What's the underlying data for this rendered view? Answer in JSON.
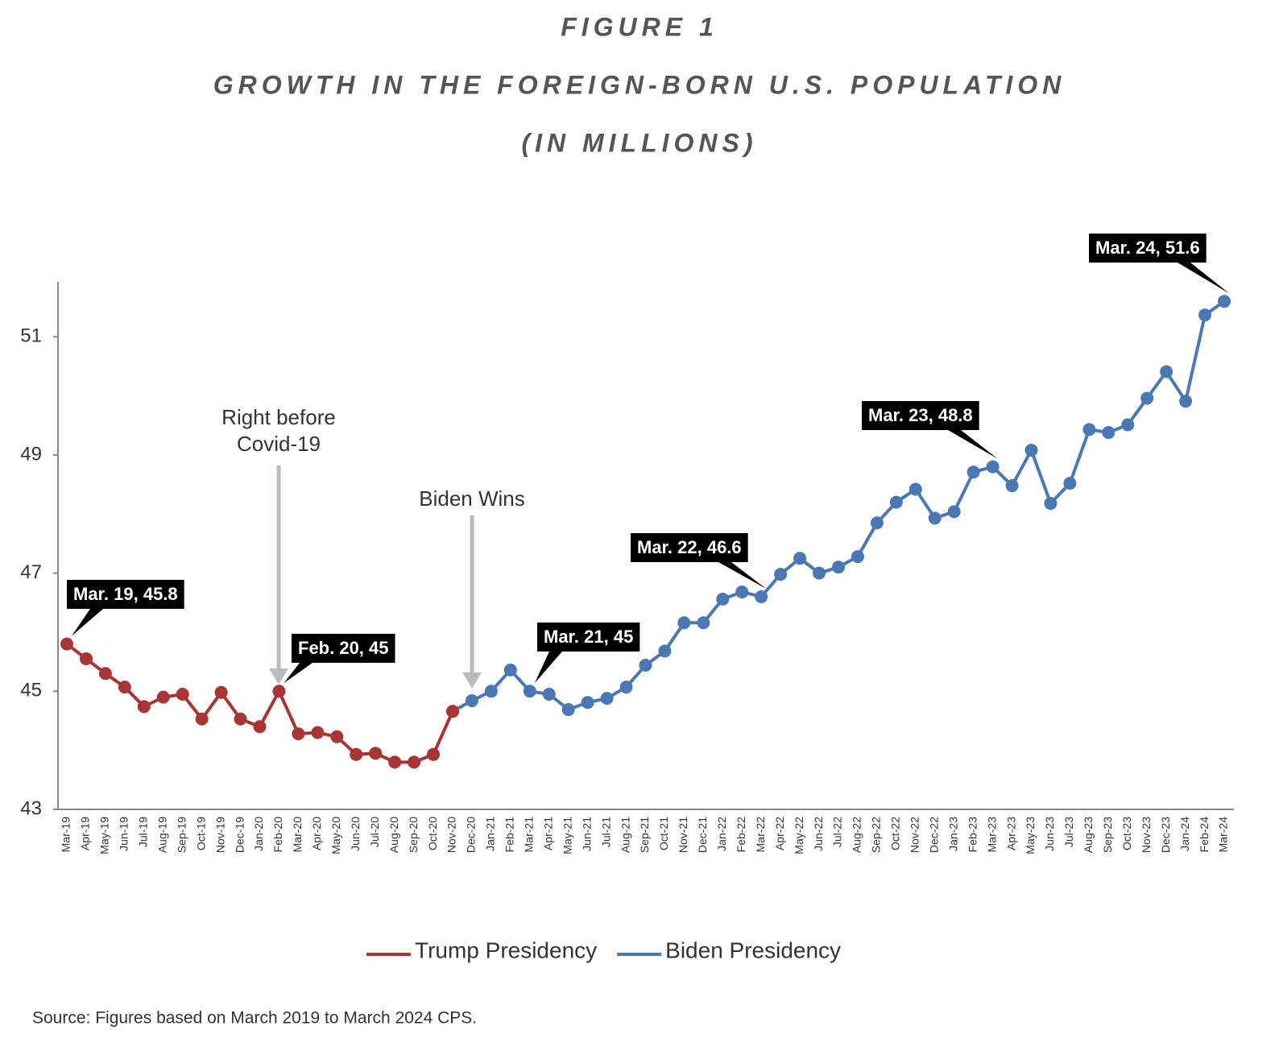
{
  "chart_data": {
    "type": "line",
    "title": "FIGURE 1",
    "subtitle": [
      "GROWTH IN THE FOREIGN-BORN U.S. POPULATION",
      "(IN MILLIONS)"
    ],
    "categories": [
      "Mar-19",
      "Apr-19",
      "May-19",
      "Jun-19",
      "Jul-19",
      "Aug-19",
      "Sep-19",
      "Oct-19",
      "Nov-19",
      "Dec-19",
      "Jan-20",
      "Feb-20",
      "Mar-20",
      "Apr-20",
      "May-20",
      "Jun-20",
      "Jul-20",
      "Aug-20",
      "Sep-20",
      "Oct-20",
      "Nov-20",
      "Dec-20",
      "Jan-21",
      "Feb-21",
      "Mar-21",
      "Apr-21",
      "May-21",
      "Jun-21",
      "Jul-21",
      "Aug-21",
      "Sep-21",
      "Oct-21",
      "Nov-21",
      "Dec-21",
      "Jan-22",
      "Feb-22",
      "Mar-22",
      "Apr-22",
      "May-22",
      "Jun-22",
      "Jul-22",
      "Aug-22",
      "Sep-22",
      "Oct-22",
      "Nov-22",
      "Dec-22",
      "Jan-23",
      "Feb-23",
      "Mar-23",
      "Apr-23",
      "May-23",
      "Jun-23",
      "Jul-23",
      "Aug-23",
      "Sep-23",
      "Oct-23",
      "Nov-23",
      "Dec-23",
      "Jan-24",
      "Feb-24",
      "Mar-24"
    ],
    "series": [
      {
        "name": "Trump Presidency",
        "color": "#a83434",
        "values": [
          45.8,
          45.55,
          45.3,
          45.07,
          44.74,
          44.9,
          44.95,
          44.53,
          44.98,
          44.53,
          44.4,
          45,
          44.28,
          44.3,
          44.23,
          43.93,
          43.95,
          43.8,
          43.8,
          43.93,
          44.66,
          null,
          null,
          null,
          null,
          null,
          null,
          null,
          null,
          null,
          null,
          null,
          null,
          null,
          null,
          null,
          null,
          null,
          null,
          null,
          null,
          null,
          null,
          null,
          null,
          null,
          null,
          null,
          null,
          null,
          null,
          null,
          null,
          null,
          null,
          null,
          null,
          null,
          null,
          null,
          null
        ]
      },
      {
        "name": "Biden Presidency",
        "color": "#4a78b5",
        "values": [
          null,
          null,
          null,
          null,
          null,
          null,
          null,
          null,
          null,
          null,
          null,
          null,
          null,
          null,
          null,
          null,
          null,
          null,
          null,
          null,
          44.66,
          44.84,
          45.0,
          45.36,
          45,
          44.95,
          44.69,
          44.81,
          44.88,
          45.07,
          45.44,
          45.68,
          46.16,
          46.16,
          46.56,
          46.68,
          46.6,
          46.98,
          47.25,
          47.0,
          47.1,
          47.28,
          47.85,
          48.2,
          48.42,
          47.93,
          48.04,
          48.71,
          48.8,
          48.48,
          49.08,
          48.18,
          48.52,
          49.43,
          49.38,
          49.51,
          49.96,
          50.41,
          49.91,
          51.37,
          51.6
        ]
      }
    ],
    "annotations": [
      "Mar. 19, 45.8",
      "Feb. 20, 45",
      "Mar. 21, 45",
      "Mar. 22, 46.6",
      "Mar. 23, 48.8",
      "Mar. 24, 51.6"
    ],
    "arrow_annotations": [
      "Right before Covid-19",
      "Biden Wins"
    ],
    "ylim": [
      43,
      51.93
    ],
    "yticks": [
      43,
      45,
      47,
      49,
      51
    ],
    "grid": false,
    "legend": "bottom",
    "source": "Source: Figures based on March 2019 to March 2024 CPS."
  }
}
